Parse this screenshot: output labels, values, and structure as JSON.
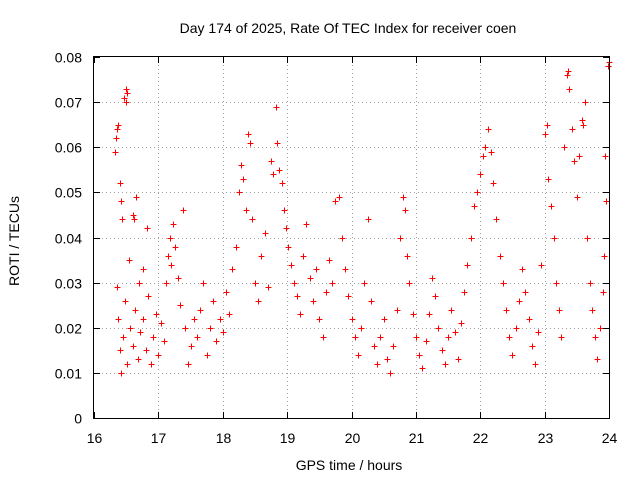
{
  "chart_data": {
    "type": "scatter",
    "title": "Day 174 of 2025, Rate Of TEC Index for receiver coen",
    "xlabel": "GPS time / hours",
    "ylabel": "ROTI / TECUs",
    "xlim": [
      16,
      24
    ],
    "ylim": [
      0,
      0.08
    ],
    "x_ticks": [
      16,
      17,
      18,
      19,
      20,
      21,
      22,
      23,
      24
    ],
    "x_tick_labels": [
      "16",
      "17",
      "18",
      "19",
      "20",
      "21",
      "22",
      "23",
      "24"
    ],
    "y_ticks": [
      0,
      0.01,
      0.02,
      0.03,
      0.04,
      0.05,
      0.06,
      0.07,
      0.08
    ],
    "y_tick_labels": [
      "0",
      "0.01",
      "0.02",
      "0.03",
      "0.04",
      "0.05",
      "0.06",
      "0.07",
      "0.08"
    ],
    "grid": true,
    "marker": "+",
    "color": "#ff0000",
    "series": [
      {
        "name": "ROTI",
        "points": [
          [
            16.32,
            0.059
          ],
          [
            16.34,
            0.062
          ],
          [
            16.36,
            0.064
          ],
          [
            16.38,
            0.065
          ],
          [
            16.4,
            0.052
          ],
          [
            16.42,
            0.048
          ],
          [
            16.44,
            0.044
          ],
          [
            16.47,
            0.071
          ],
          [
            16.49,
            0.073
          ],
          [
            16.5,
            0.07
          ],
          [
            16.52,
            0.072
          ],
          [
            16.55,
            0.035
          ],
          [
            16.6,
            0.045
          ],
          [
            16.62,
            0.044
          ],
          [
            16.66,
            0.049
          ],
          [
            16.7,
            0.03
          ],
          [
            16.76,
            0.033
          ],
          [
            16.82,
            0.042
          ],
          [
            16.35,
            0.029
          ],
          [
            16.38,
            0.022
          ],
          [
            16.4,
            0.015
          ],
          [
            16.42,
            0.01
          ],
          [
            16.45,
            0.018
          ],
          [
            16.48,
            0.026
          ],
          [
            16.52,
            0.012
          ],
          [
            16.56,
            0.02
          ],
          [
            16.6,
            0.016
          ],
          [
            16.64,
            0.024
          ],
          [
            16.68,
            0.013
          ],
          [
            16.72,
            0.019
          ],
          [
            16.76,
            0.022
          ],
          [
            16.8,
            0.015
          ],
          [
            16.84,
            0.027
          ],
          [
            16.88,
            0.012
          ],
          [
            16.92,
            0.018
          ],
          [
            16.96,
            0.023
          ],
          [
            17.0,
            0.014
          ],
          [
            17.04,
            0.021
          ],
          [
            17.08,
            0.017
          ],
          [
            17.12,
            0.03
          ],
          [
            17.15,
            0.036
          ],
          [
            17.18,
            0.04
          ],
          [
            17.2,
            0.034
          ],
          [
            17.23,
            0.043
          ],
          [
            17.26,
            0.038
          ],
          [
            17.3,
            0.031
          ],
          [
            17.34,
            0.025
          ],
          [
            17.38,
            0.046
          ],
          [
            17.42,
            0.02
          ],
          [
            17.46,
            0.012
          ],
          [
            17.5,
            0.016
          ],
          [
            17.55,
            0.022
          ],
          [
            17.6,
            0.018
          ],
          [
            17.65,
            0.024
          ],
          [
            17.7,
            0.03
          ],
          [
            17.75,
            0.014
          ],
          [
            17.8,
            0.02
          ],
          [
            17.85,
            0.026
          ],
          [
            17.9,
            0.017
          ],
          [
            17.95,
            0.022
          ],
          [
            18.0,
            0.019
          ],
          [
            18.05,
            0.028
          ],
          [
            18.1,
            0.023
          ],
          [
            18.15,
            0.033
          ],
          [
            18.2,
            0.038
          ],
          [
            18.25,
            0.05
          ],
          [
            18.28,
            0.056
          ],
          [
            18.32,
            0.053
          ],
          [
            18.36,
            0.046
          ],
          [
            18.4,
            0.063
          ],
          [
            18.42,
            0.061
          ],
          [
            18.46,
            0.044
          ],
          [
            18.5,
            0.03
          ],
          [
            18.55,
            0.026
          ],
          [
            18.6,
            0.036
          ],
          [
            18.65,
            0.041
          ],
          [
            18.7,
            0.029
          ],
          [
            18.75,
            0.057
          ],
          [
            18.78,
            0.054
          ],
          [
            18.82,
            0.069
          ],
          [
            18.85,
            0.061
          ],
          [
            18.88,
            0.055
          ],
          [
            18.92,
            0.052
          ],
          [
            18.95,
            0.046
          ],
          [
            18.98,
            0.042
          ],
          [
            19.02,
            0.038
          ],
          [
            19.06,
            0.034
          ],
          [
            19.1,
            0.03
          ],
          [
            19.15,
            0.027
          ],
          [
            19.2,
            0.023
          ],
          [
            19.25,
            0.036
          ],
          [
            19.3,
            0.043
          ],
          [
            19.35,
            0.031
          ],
          [
            19.4,
            0.026
          ],
          [
            19.45,
            0.033
          ],
          [
            19.5,
            0.022
          ],
          [
            19.55,
            0.018
          ],
          [
            19.6,
            0.028
          ],
          [
            19.65,
            0.035
          ],
          [
            19.7,
            0.03
          ],
          [
            19.75,
            0.048
          ],
          [
            19.8,
            0.049
          ],
          [
            19.85,
            0.04
          ],
          [
            19.9,
            0.033
          ],
          [
            19.95,
            0.027
          ],
          [
            20.0,
            0.022
          ],
          [
            20.05,
            0.018
          ],
          [
            20.1,
            0.014
          ],
          [
            20.15,
            0.02
          ],
          [
            20.2,
            0.03
          ],
          [
            20.25,
            0.044
          ],
          [
            20.3,
            0.026
          ],
          [
            20.35,
            0.016
          ],
          [
            20.4,
            0.012
          ],
          [
            20.45,
            0.018
          ],
          [
            20.5,
            0.022
          ],
          [
            20.55,
            0.013
          ],
          [
            20.6,
            0.01
          ],
          [
            20.65,
            0.016
          ],
          [
            20.7,
            0.024
          ],
          [
            20.75,
            0.04
          ],
          [
            20.8,
            0.049
          ],
          [
            20.83,
            0.046
          ],
          [
            20.86,
            0.036
          ],
          [
            20.9,
            0.03
          ],
          [
            20.95,
            0.023
          ],
          [
            21.0,
            0.018
          ],
          [
            21.05,
            0.014
          ],
          [
            21.1,
            0.011
          ],
          [
            21.15,
            0.017
          ],
          [
            21.2,
            0.023
          ],
          [
            21.25,
            0.031
          ],
          [
            21.3,
            0.027
          ],
          [
            21.35,
            0.02
          ],
          [
            21.4,
            0.015
          ],
          [
            21.45,
            0.012
          ],
          [
            21.5,
            0.018
          ],
          [
            21.55,
            0.024
          ],
          [
            21.6,
            0.019
          ],
          [
            21.65,
            0.013
          ],
          [
            21.7,
            0.021
          ],
          [
            21.75,
            0.028
          ],
          [
            21.8,
            0.034
          ],
          [
            21.85,
            0.04
          ],
          [
            21.9,
            0.047
          ],
          [
            21.95,
            0.05
          ],
          [
            22.0,
            0.054
          ],
          [
            22.04,
            0.058
          ],
          [
            22.08,
            0.06
          ],
          [
            22.12,
            0.064
          ],
          [
            22.16,
            0.059
          ],
          [
            22.2,
            0.052
          ],
          [
            22.25,
            0.044
          ],
          [
            22.3,
            0.036
          ],
          [
            22.35,
            0.03
          ],
          [
            22.4,
            0.024
          ],
          [
            22.45,
            0.018
          ],
          [
            22.5,
            0.014
          ],
          [
            22.55,
            0.02
          ],
          [
            22.6,
            0.026
          ],
          [
            22.65,
            0.033
          ],
          [
            22.7,
            0.028
          ],
          [
            22.75,
            0.022
          ],
          [
            22.8,
            0.016
          ],
          [
            22.85,
            0.012
          ],
          [
            22.9,
            0.019
          ],
          [
            22.95,
            0.034
          ],
          [
            23.0,
            0.063
          ],
          [
            23.03,
            0.065
          ],
          [
            23.06,
            0.053
          ],
          [
            23.1,
            0.047
          ],
          [
            23.14,
            0.04
          ],
          [
            23.18,
            0.03
          ],
          [
            23.22,
            0.024
          ],
          [
            23.26,
            0.018
          ],
          [
            23.3,
            0.06
          ],
          [
            23.34,
            0.076
          ],
          [
            23.36,
            0.077
          ],
          [
            23.38,
            0.073
          ],
          [
            23.42,
            0.064
          ],
          [
            23.46,
            0.057
          ],
          [
            23.5,
            0.049
          ],
          [
            23.54,
            0.058
          ],
          [
            23.58,
            0.066
          ],
          [
            23.6,
            0.065
          ],
          [
            23.63,
            0.07
          ],
          [
            23.66,
            0.04
          ],
          [
            23.7,
            0.03
          ],
          [
            23.74,
            0.024
          ],
          [
            23.78,
            0.018
          ],
          [
            23.82,
            0.013
          ],
          [
            23.86,
            0.02
          ],
          [
            23.9,
            0.028
          ],
          [
            23.94,
            0.058
          ],
          [
            23.96,
            0.048
          ],
          [
            23.98,
            0.078
          ],
          [
            24.0,
            0.079
          ],
          [
            23.92,
            0.036
          ]
        ]
      }
    ]
  }
}
